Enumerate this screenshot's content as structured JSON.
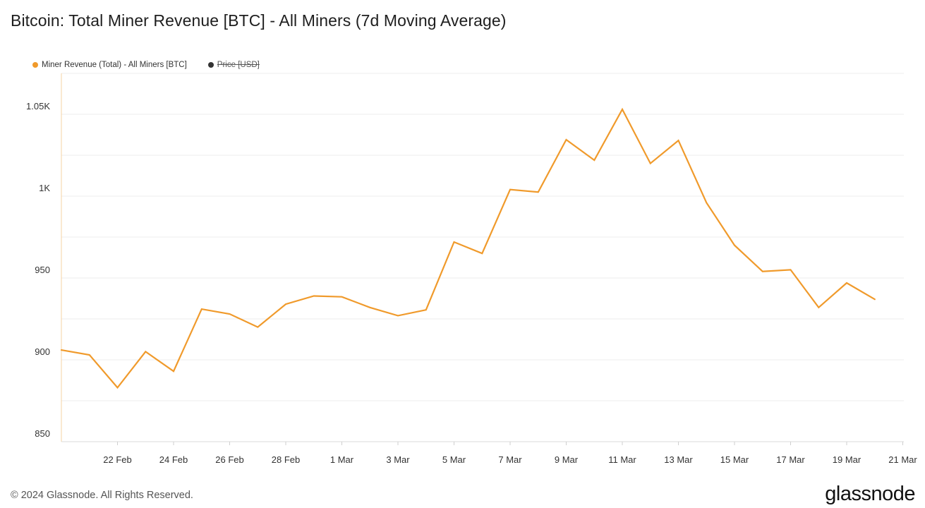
{
  "page": {
    "title": "Bitcoin: Total Miner Revenue [BTC] - All Miners (7d Moving Average)",
    "footer": "© 2024 Glassnode. All Rights Reserved.",
    "brand": "glassnode"
  },
  "legend": [
    {
      "label": "Miner Revenue (Total) - All Miners [BTC]",
      "color": "#f09a2b",
      "disabled": false
    },
    {
      "label": "Price [USD]",
      "color": "#333333",
      "disabled": true
    }
  ],
  "chart_data": {
    "type": "line",
    "title": "Bitcoin: Total Miner Revenue [BTC] - All Miners (7d Moving Average)",
    "xlabel": "",
    "ylabel": "",
    "ylim": [
      850,
      1075
    ],
    "yticks": [
      850,
      900,
      950,
      1000,
      1050
    ],
    "ytick_labels": [
      "850",
      "900",
      "950",
      "1K",
      "1.05K"
    ],
    "xtick_labels": [
      "22 Feb",
      "24 Feb",
      "26 Feb",
      "28 Feb",
      "1 Mar",
      "3 Mar",
      "5 Mar",
      "7 Mar",
      "9 Mar",
      "11 Mar",
      "13 Mar",
      "15 Mar",
      "17 Mar",
      "19 Mar",
      "21 Mar"
    ],
    "grid": true,
    "legend_position": "top-left",
    "series": [
      {
        "name": "Miner Revenue (Total) - All Miners [BTC]",
        "color": "#f09a2b",
        "x": [
          "20 Feb",
          "21 Feb",
          "22 Feb",
          "23 Feb",
          "24 Feb",
          "25 Feb",
          "26 Feb",
          "27 Feb",
          "28 Feb",
          "29 Feb",
          "1 Mar",
          "2 Mar",
          "3 Mar",
          "4 Mar",
          "5 Mar",
          "6 Mar",
          "7 Mar",
          "8 Mar",
          "9 Mar",
          "10 Mar",
          "11 Mar",
          "12 Mar",
          "13 Mar",
          "14 Mar",
          "15 Mar",
          "16 Mar",
          "17 Mar",
          "18 Mar",
          "19 Mar",
          "20 Mar"
        ],
        "values": [
          906,
          903,
          883,
          905,
          893,
          931,
          928,
          920,
          934,
          939,
          938.5,
          932,
          927,
          930.5,
          972,
          965,
          1004,
          1002.5,
          1034.5,
          1022,
          1053,
          1020,
          1034,
          996,
          970,
          954,
          955,
          932,
          947,
          937
        ]
      }
    ]
  }
}
